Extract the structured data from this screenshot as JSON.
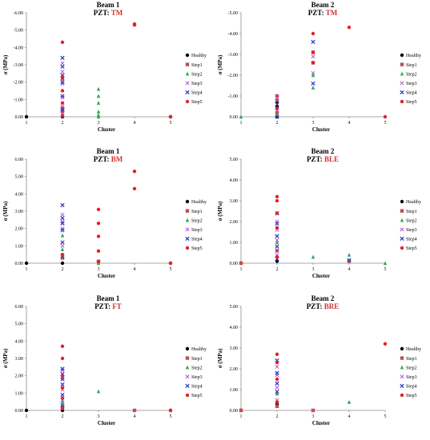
{
  "legend_labels": [
    "Healthy",
    "Step1",
    "Step2",
    "Step3",
    "Step4",
    "Step5"
  ],
  "series_colors": {
    "Healthy": "#000000",
    "Step1": "#c0504d",
    "Step2": "#2ea84f",
    "Step3": "#b845d8",
    "Step4": "#2f3fc8",
    "Step5": "#e5202a"
  },
  "chart_data": [
    {
      "type": "scatter",
      "title": "Beam 1",
      "pzt_prefix": "PZT: ",
      "pzt": "TM",
      "xlabel": "Cluster",
      "ylabel": "σ (MPa)",
      "xlim": [
        1,
        5
      ],
      "ylim": [
        0,
        -6
      ],
      "y_tick_labels": [
        "0.00",
        "-1.00",
        "-2.00",
        "-3.00",
        "-4.00",
        "-5.00",
        "-6.00"
      ],
      "x_tick_labels": [
        "1",
        "2",
        "3",
        "4",
        "5"
      ],
      "legend_position": "right",
      "series": [
        {
          "name": "Healthy",
          "points": [
            [
              1,
              0
            ],
            [
              2,
              0
            ],
            [
              5,
              0
            ]
          ]
        },
        {
          "name": "Step1",
          "points": [
            [
              2,
              -0.3
            ],
            [
              2,
              -0.5
            ],
            [
              2,
              -2.2
            ]
          ]
        },
        {
          "name": "Step2",
          "points": [
            [
              2,
              -0.1
            ],
            [
              3,
              0
            ],
            [
              3,
              -0.1
            ],
            [
              3,
              -0.3
            ],
            [
              3,
              -0.8
            ],
            [
              3,
              -1.2
            ],
            [
              3,
              -1.6
            ]
          ]
        },
        {
          "name": "Step3",
          "points": [
            [
              2,
              -0.2
            ],
            [
              2,
              -0.6
            ],
            [
              2,
              -1.1
            ],
            [
              2,
              -1.9
            ],
            [
              2,
              -2.6
            ],
            [
              2,
              -3.1
            ]
          ]
        },
        {
          "name": "Step4",
          "points": [
            [
              2,
              -0.4
            ],
            [
              2,
              -1.2
            ],
            [
              2,
              -2.0
            ],
            [
              2,
              -2.4
            ],
            [
              2,
              -2.9
            ],
            [
              2,
              -3.4
            ]
          ]
        },
        {
          "name": "Step5",
          "points": [
            [
              2,
              -0.05
            ],
            [
              2,
              -0.8
            ],
            [
              2,
              -1.5
            ],
            [
              2,
              -2.3
            ],
            [
              2,
              -4.3
            ],
            [
              4,
              -5.3
            ],
            [
              4,
              -5.35
            ],
            [
              5,
              0
            ]
          ]
        }
      ]
    },
    {
      "type": "scatter",
      "title": "Beam 2",
      "pzt_prefix": "PZT: ",
      "pzt": "TM",
      "xlabel": "Cluster",
      "ylabel": "σ (MPa)",
      "xlim": [
        1,
        5
      ],
      "ylim": [
        0,
        -5
      ],
      "y_tick_labels": [
        "0.00",
        "-1.00",
        "-2.00",
        "-3.00",
        "-4.00",
        "-5.00"
      ],
      "x_tick_labels": [
        "1",
        "2",
        "3",
        "4",
        "5"
      ],
      "legend_position": "right",
      "series": [
        {
          "name": "Healthy",
          "points": [
            [
              2,
              0
            ],
            [
              2,
              -0.5
            ],
            [
              2,
              -0.7
            ]
          ]
        },
        {
          "name": "Step1",
          "points": [
            [
              2,
              -0.2
            ],
            [
              2,
              -0.8
            ],
            [
              2,
              -1.0
            ],
            [
              3,
              -2.6
            ],
            [
              3,
              -3.1
            ]
          ]
        },
        {
          "name": "Step2",
          "points": [
            [
              1,
              0
            ],
            [
              2,
              -0.1
            ],
            [
              3,
              -1.4
            ],
            [
              3,
              -2.0
            ]
          ]
        },
        {
          "name": "Step3",
          "points": [
            [
              2,
              -0.3
            ],
            [
              2,
              -0.9
            ],
            [
              3,
              -2.1
            ],
            [
              3,
              -2.9
            ]
          ]
        },
        {
          "name": "Step4",
          "points": [
            [
              2,
              0
            ],
            [
              2,
              -0.6
            ],
            [
              3,
              -1.6
            ],
            [
              3,
              -3.6
            ]
          ]
        },
        {
          "name": "Step5",
          "points": [
            [
              2,
              -0.4
            ],
            [
              3,
              -2.6
            ],
            [
              3,
              -3.1
            ],
            [
              3,
              -4.0
            ],
            [
              4,
              -4.3
            ],
            [
              5,
              0
            ]
          ]
        }
      ]
    },
    {
      "type": "scatter",
      "title": "Beam 1",
      "pzt_prefix": "PZT: ",
      "pzt": "BM",
      "xlabel": "Cluster",
      "ylabel": "σ (MPa)",
      "xlim": [
        1,
        5
      ],
      "ylim": [
        0,
        6
      ],
      "y_tick_labels": [
        "0.00",
        "1.00",
        "2.00",
        "3.00",
        "4.00",
        "5.00",
        "6.00"
      ],
      "x_tick_labels": [
        "1",
        "2",
        "3",
        "4",
        "5"
      ],
      "legend_position": "right",
      "series": [
        {
          "name": "Healthy",
          "points": [
            [
              1,
              0
            ],
            [
              2,
              0
            ],
            [
              5,
              0
            ]
          ]
        },
        {
          "name": "Step1",
          "points": [
            [
              2,
              0.3
            ],
            [
              3,
              0.1
            ]
          ]
        },
        {
          "name": "Step2",
          "points": [
            [
              2,
              0.8
            ],
            [
              2,
              1.6
            ],
            [
              3,
              0
            ]
          ]
        },
        {
          "name": "Step3",
          "points": [
            [
              2,
              1.0
            ],
            [
              2,
              2.0
            ],
            [
              2,
              2.4
            ],
            [
              2,
              2.8
            ]
          ]
        },
        {
          "name": "Step4",
          "points": [
            [
              2,
              0.4
            ],
            [
              2,
              1.2
            ],
            [
              2,
              1.9
            ],
            [
              2,
              2.3
            ],
            [
              2,
              2.6
            ],
            [
              2,
              3.35
            ]
          ]
        },
        {
          "name": "Step5",
          "points": [
            [
              2,
              0.5
            ],
            [
              3,
              0.1
            ],
            [
              3,
              0.7
            ],
            [
              3,
              1.55
            ],
            [
              3,
              2.3
            ],
            [
              3,
              3.1
            ],
            [
              4,
              4.3
            ],
            [
              4,
              5.3
            ],
            [
              5,
              0
            ]
          ]
        }
      ]
    },
    {
      "type": "scatter",
      "title": "Beam 2",
      "pzt_prefix": "PZT: ",
      "pzt": "BLE",
      "xlabel": "Cluster",
      "ylabel": "σ (MPa)",
      "xlim": [
        1,
        5
      ],
      "ylim": [
        0,
        5
      ],
      "y_tick_labels": [
        "0.00",
        "1.00",
        "2.00",
        "3.00",
        "4.00",
        "5.00"
      ],
      "x_tick_labels": [
        "1",
        "2",
        "3",
        "4",
        "5"
      ],
      "legend_position": "right",
      "series": [
        {
          "name": "Healthy",
          "points": [
            [
              1,
              0
            ],
            [
              2,
              0.1
            ]
          ]
        },
        {
          "name": "Step1",
          "points": [
            [
              1,
              0
            ],
            [
              2,
              0.6
            ],
            [
              4,
              0.1
            ]
          ]
        },
        {
          "name": "Step2",
          "points": [
            [
              2,
              1.0
            ],
            [
              3,
              0.3
            ],
            [
              4,
              0.4
            ],
            [
              5,
              0
            ]
          ]
        },
        {
          "name": "Step3",
          "points": [
            [
              2,
              0.4
            ],
            [
              2,
              1.1
            ],
            [
              2,
              1.6
            ],
            [
              2,
              2.0
            ]
          ]
        },
        {
          "name": "Step4",
          "points": [
            [
              2,
              0.2
            ],
            [
              2,
              0.8
            ],
            [
              2,
              1.3
            ],
            [
              2,
              1.9
            ],
            [
              2,
              2.4
            ],
            [
              4,
              0.15
            ]
          ]
        },
        {
          "name": "Step5",
          "points": [
            [
              2,
              0.3
            ],
            [
              2,
              1.7
            ],
            [
              2,
              2.4
            ],
            [
              2,
              3.0
            ],
            [
              2,
              3.2
            ]
          ]
        }
      ]
    },
    {
      "type": "scatter",
      "title": "Beam 1",
      "pzt_prefix": "PZT: ",
      "pzt": "FT",
      "xlabel": "Cluster",
      "ylabel": "σ (MPa)",
      "xlim": [
        1,
        5
      ],
      "ylim": [
        0,
        6
      ],
      "y_tick_labels": [
        "0.00",
        "1.00",
        "2.00",
        "3.00",
        "4.00",
        "5.00",
        "6.00"
      ],
      "x_tick_labels": [
        "1",
        "2",
        "3",
        "4",
        "5"
      ],
      "legend_position": "right",
      "series": [
        {
          "name": "Healthy",
          "points": [
            [
              1,
              0
            ],
            [
              2,
              0
            ],
            [
              5,
              0
            ]
          ]
        },
        {
          "name": "Step1",
          "points": [
            [
              2,
              0.2
            ],
            [
              4,
              0
            ]
          ]
        },
        {
          "name": "Step2",
          "points": [
            [
              2,
              0.5
            ],
            [
              3,
              1.1
            ]
          ]
        },
        {
          "name": "Step3",
          "points": [
            [
              2,
              0.6
            ],
            [
              2,
              1.2
            ],
            [
              2,
              1.9
            ],
            [
              2,
              2.3
            ]
          ]
        },
        {
          "name": "Step4",
          "points": [
            [
              2,
              0.3
            ],
            [
              2,
              0.9
            ],
            [
              2,
              1.5
            ],
            [
              2,
              1.8
            ],
            [
              2,
              2.1
            ],
            [
              2,
              2.4
            ]
          ]
        },
        {
          "name": "Step5",
          "points": [
            [
              2,
              0.1
            ],
            [
              2,
              0.7
            ],
            [
              2,
              1.3
            ],
            [
              2,
              2.0
            ],
            [
              2,
              3.0
            ],
            [
              2,
              3.7
            ],
            [
              5,
              0
            ]
          ]
        }
      ]
    },
    {
      "type": "scatter",
      "title": "Beam 2",
      "pzt_prefix": "PZT: ",
      "pzt": "BRE",
      "xlabel": "Cluster",
      "ylabel": "σ (MPa)",
      "xlim": [
        1,
        5
      ],
      "ylim": [
        0,
        5
      ],
      "y_tick_labels": [
        "0.00",
        "1.00",
        "2.00",
        "3.00",
        "4.00",
        "5.00"
      ],
      "x_tick_labels": [
        "1",
        "2",
        "3",
        "4",
        "5"
      ],
      "legend_position": "right",
      "series": [
        {
          "name": "Healthy",
          "points": [
            [
              1,
              0
            ],
            [
              2,
              0.3
            ]
          ]
        },
        {
          "name": "Step1",
          "points": [
            [
              1,
              0
            ],
            [
              2,
              0.2
            ],
            [
              3,
              0
            ]
          ]
        },
        {
          "name": "Step2",
          "points": [
            [
              2,
              0.8
            ],
            [
              4,
              0.4
            ]
          ]
        },
        {
          "name": "Step3",
          "points": [
            [
              2,
              0.5
            ],
            [
              2,
              1.1
            ],
            [
              2,
              1.7
            ],
            [
              2,
              2.1
            ],
            [
              3,
              0
            ]
          ]
        },
        {
          "name": "Step4",
          "points": [
            [
              2,
              0.9
            ],
            [
              2,
              1.3
            ],
            [
              2,
              1.8
            ],
            [
              2,
              2.4
            ]
          ]
        },
        {
          "name": "Step5",
          "points": [
            [
              2,
              0.4
            ],
            [
              2,
              1.5
            ],
            [
              2,
              2.3
            ],
            [
              2,
              2.7
            ],
            [
              5,
              3.2
            ]
          ]
        }
      ]
    }
  ]
}
